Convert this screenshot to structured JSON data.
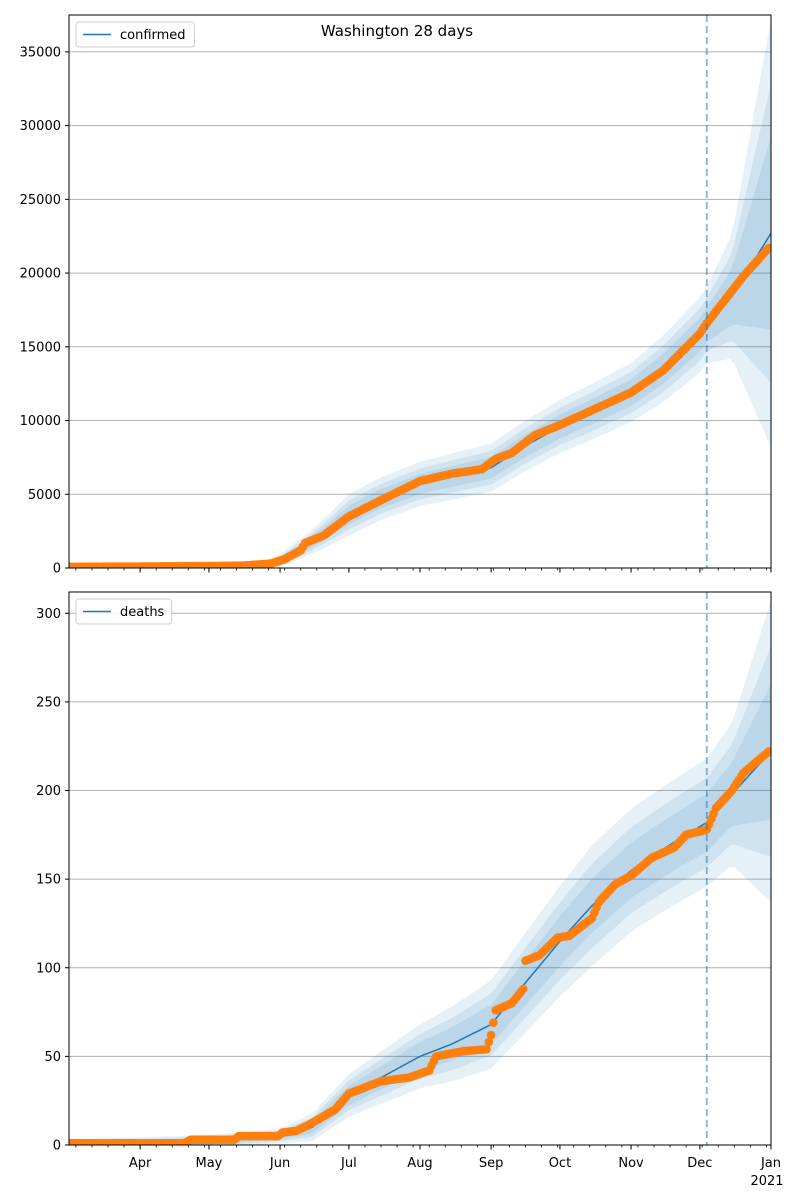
{
  "title": "Washington 28 days",
  "chart_data": [
    {
      "type": "line",
      "legend": "confirmed",
      "legend_placement": "upper-left",
      "grid": "y",
      "ylim": [
        0,
        37500
      ],
      "yticks": [
        0,
        5000,
        10000,
        15000,
        20000,
        25000,
        30000,
        35000
      ],
      "xlim": [
        "2020-03-01",
        "2021-01-01"
      ],
      "vline": "2020-12-04",
      "fit": [
        [
          "2020-03-01",
          0
        ],
        [
          "2020-05-01",
          30
        ],
        [
          "2020-05-25",
          200
        ],
        [
          "2020-06-01",
          500
        ],
        [
          "2020-06-10",
          1300
        ],
        [
          "2020-06-20",
          2300
        ],
        [
          "2020-07-01",
          3600
        ],
        [
          "2020-07-15",
          4700
        ],
        [
          "2020-08-01",
          5700
        ],
        [
          "2020-08-15",
          6200
        ],
        [
          "2020-09-01",
          6800
        ],
        [
          "2020-09-15",
          8200
        ],
        [
          "2020-10-01",
          9600
        ],
        [
          "2020-10-15",
          10600
        ],
        [
          "2020-11-01",
          11900
        ],
        [
          "2020-11-15",
          13500
        ],
        [
          "2020-12-01",
          15800
        ],
        [
          "2020-12-04",
          16500
        ],
        [
          "2020-12-15",
          18400
        ],
        [
          "2021-01-01",
          22700
        ]
      ],
      "band_width": [
        [
          "2020-03-01",
          0
        ],
        [
          "2020-05-20",
          150
        ],
        [
          "2020-06-15",
          800
        ],
        [
          "2020-07-01",
          1400
        ],
        [
          "2020-08-01",
          1500
        ],
        [
          "2020-09-15",
          1700
        ],
        [
          "2020-11-01",
          2000
        ],
        [
          "2020-12-04",
          2600
        ],
        [
          "2020-12-15",
          4200
        ],
        [
          "2021-01-01",
          14500
        ]
      ],
      "observed": [
        [
          "2020-03-01",
          80
        ],
        [
          "2020-04-20",
          120
        ],
        [
          "2020-05-15",
          160
        ],
        [
          "2020-05-28",
          300
        ],
        [
          "2020-06-03",
          600
        ],
        [
          "2020-06-10",
          1200
        ],
        [
          "2020-06-12",
          1700
        ],
        [
          "2020-06-20",
          2200
        ],
        [
          "2020-07-01",
          3500
        ],
        [
          "2020-07-15",
          4600
        ],
        [
          "2020-08-01",
          5900
        ],
        [
          "2020-08-15",
          6400
        ],
        [
          "2020-08-28",
          6700
        ],
        [
          "2020-09-03",
          7400
        ],
        [
          "2020-09-10",
          7800
        ],
        [
          "2020-09-20",
          9000
        ],
        [
          "2020-10-01",
          9700
        ],
        [
          "2020-10-15",
          10700
        ],
        [
          "2020-11-01",
          11900
        ],
        [
          "2020-11-15",
          13400
        ],
        [
          "2020-12-01",
          15900
        ],
        [
          "2020-12-04",
          16600
        ],
        [
          "2020-12-12",
          18200
        ],
        [
          "2020-12-20",
          19800
        ],
        [
          "2020-12-31",
          21700
        ]
      ]
    },
    {
      "type": "line",
      "legend": "deaths",
      "legend_placement": "upper-left",
      "grid": "y",
      "ylim": [
        0,
        312
      ],
      "yticks": [
        0,
        50,
        100,
        150,
        200,
        250,
        300
      ],
      "xlim": [
        "2020-03-01",
        "2021-01-01"
      ],
      "vline": "2020-12-04",
      "xticks": [
        "Apr",
        "May",
        "Jun",
        "Jul",
        "Aug",
        "Sep",
        "Oct",
        "Nov",
        "Dec",
        "Jan"
      ],
      "xtick_dates": [
        "2020-04-01",
        "2020-05-01",
        "2020-06-01",
        "2020-07-01",
        "2020-08-01",
        "2020-09-01",
        "2020-10-01",
        "2020-11-01",
        "2020-12-01",
        "2021-01-01"
      ],
      "year_label": "2021",
      "fit": [
        [
          "2020-03-01",
          0
        ],
        [
          "2020-05-01",
          2
        ],
        [
          "2020-06-01",
          5
        ],
        [
          "2020-06-15",
          10
        ],
        [
          "2020-07-01",
          28
        ],
        [
          "2020-07-15",
          38
        ],
        [
          "2020-08-01",
          50
        ],
        [
          "2020-08-15",
          57
        ],
        [
          "2020-09-01",
          68
        ],
        [
          "2020-09-15",
          90
        ],
        [
          "2020-10-01",
          115
        ],
        [
          "2020-10-15",
          135
        ],
        [
          "2020-11-01",
          155
        ],
        [
          "2020-11-15",
          167
        ],
        [
          "2020-12-04",
          182
        ],
        [
          "2020-12-15",
          198
        ],
        [
          "2021-01-01",
          222
        ]
      ],
      "band_width": [
        [
          "2020-03-01",
          3
        ],
        [
          "2020-06-01",
          4
        ],
        [
          "2020-07-01",
          12
        ],
        [
          "2020-08-01",
          18
        ],
        [
          "2020-09-15",
          28
        ],
        [
          "2020-10-15",
          34
        ],
        [
          "2020-12-04",
          36
        ],
        [
          "2020-12-15",
          40
        ],
        [
          "2021-01-01",
          85
        ]
      ],
      "observed": [
        [
          "2020-03-01",
          1
        ],
        [
          "2020-04-20",
          1
        ],
        [
          "2020-04-23",
          3
        ],
        [
          "2020-05-12",
          3
        ],
        [
          "2020-05-14",
          5
        ],
        [
          "2020-05-31",
          5
        ],
        [
          "2020-06-02",
          7
        ],
        [
          "2020-06-08",
          8
        ],
        [
          "2020-06-13",
          11
        ],
        [
          "2020-06-25",
          20
        ],
        [
          "2020-07-01",
          29
        ],
        [
          "2020-07-15",
          36
        ],
        [
          "2020-07-27",
          38
        ],
        [
          "2020-08-05",
          42
        ],
        [
          "2020-08-08",
          50
        ],
        [
          "2020-08-20",
          53
        ],
        [
          "2020-08-30",
          54
        ],
        [
          "2020-09-01",
          62
        ],
        [
          "2020-09-03",
          76
        ],
        [
          "2020-09-10",
          80
        ],
        [
          "2020-09-15",
          88
        ],
        [
          "2020-09-16",
          104
        ],
        [
          "2020-09-22",
          107
        ],
        [
          "2020-09-30",
          117
        ],
        [
          "2020-10-05",
          118
        ],
        [
          "2020-10-15",
          128
        ],
        [
          "2020-10-18",
          137
        ],
        [
          "2020-10-25",
          147
        ],
        [
          "2020-11-01",
          152
        ],
        [
          "2020-11-10",
          162
        ],
        [
          "2020-11-20",
          168
        ],
        [
          "2020-11-25",
          175
        ],
        [
          "2020-12-04",
          178
        ],
        [
          "2020-12-08",
          190
        ],
        [
          "2020-12-15",
          200
        ],
        [
          "2020-12-20",
          210
        ],
        [
          "2020-12-31",
          222
        ]
      ]
    }
  ],
  "colors": {
    "line": "#1f77b4",
    "band": "#1f77b4",
    "observed": "#ff7f0e",
    "grid": "#b0b0b0",
    "vline": "#1f77b4"
  }
}
